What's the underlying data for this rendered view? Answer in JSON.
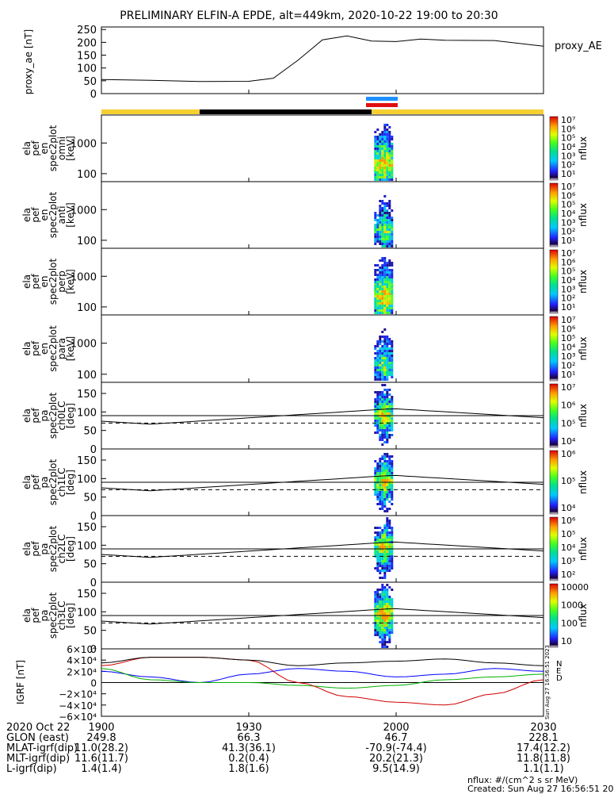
{
  "title": "PRELIMINARY ELFIN-A EPDE, alt=449km, 2020-10-22 19:00 to 20:30",
  "colors": {
    "yellow_bar": "#f5d030",
    "black_bar": "#000000",
    "blue_bar": "#1e90ff",
    "red_bar": "#e01010",
    "grid_line": "#000000"
  },
  "chart_data": [
    {
      "type": "line",
      "panel": "proxy_ae",
      "ylabel": "proxy_ae [nT]",
      "legend": "proxy_AE",
      "ylim": [
        0,
        260
      ],
      "yticks": [
        "250",
        "200",
        "150",
        "100",
        "50",
        "0"
      ],
      "x_minutes": [
        0,
        10,
        20,
        30,
        35,
        40,
        45,
        50,
        55,
        60,
        65,
        70,
        80,
        90
      ],
      "values": [
        55,
        52,
        47,
        48,
        60,
        130,
        210,
        225,
        205,
        203,
        213,
        208,
        207,
        185
      ]
    },
    {
      "type": "heatmap",
      "panel": "omni",
      "ylabel": "ela pef en spec2plot omni [keV]",
      "yscale": "log",
      "yticks": [
        "1000",
        "100"
      ],
      "colorbar_label": "nflux",
      "colorbar_ticks": [
        "10⁷",
        "10⁶",
        "10⁵",
        "10⁴",
        "10³",
        "10²",
        "10¹"
      ]
    },
    {
      "type": "heatmap",
      "panel": "anti",
      "ylabel": "ela pef en spec2plot anti [keV]",
      "yscale": "log",
      "yticks": [
        "1000",
        "100"
      ],
      "colorbar_label": "nflux",
      "colorbar_ticks": [
        "10⁷",
        "10⁶",
        "10⁵",
        "10⁴",
        "10³",
        "10²",
        "10¹"
      ]
    },
    {
      "type": "heatmap",
      "panel": "perp",
      "ylabel": "ela pef en spec2plot perp [keV]",
      "yscale": "log",
      "yticks": [
        "1000",
        "100"
      ],
      "colorbar_label": "nflux",
      "colorbar_ticks": [
        "10⁷",
        "10⁶",
        "10⁵",
        "10⁴",
        "10³",
        "10²",
        "10¹"
      ]
    },
    {
      "type": "heatmap",
      "panel": "para",
      "ylabel": "ela pef en spec2plot para [keV]",
      "yscale": "log",
      "yticks": [
        "1000",
        "100"
      ],
      "colorbar_label": "nflux",
      "colorbar_ticks": [
        "10⁷",
        "10⁶",
        "10⁵",
        "10⁴",
        "10³",
        "10²",
        "10¹"
      ]
    },
    {
      "type": "heatmap",
      "panel": "ch0LC",
      "ylabel": "ela pef pa spec2plot ch0LC [deg]",
      "ylim": [
        0,
        180
      ],
      "yticks": [
        "150",
        "100",
        "50",
        "0"
      ],
      "colorbar_label": "nflux",
      "colorbar_ticks": [
        "10⁷",
        "10⁶",
        "10⁵",
        "10⁴"
      ]
    },
    {
      "type": "heatmap",
      "panel": "ch1LC",
      "ylabel": "ela pef pa spec2plot ch1LC [deg]",
      "ylim": [
        0,
        180
      ],
      "yticks": [
        "150",
        "100",
        "50",
        "0"
      ],
      "colorbar_label": "nflux",
      "colorbar_ticks": [
        "10⁶",
        "10⁵",
        "10⁴"
      ]
    },
    {
      "type": "heatmap",
      "panel": "ch2LC",
      "ylabel": "ela pef pa spec2plot ch2LC [deg]",
      "ylim": [
        0,
        180
      ],
      "yticks": [
        "150",
        "100",
        "50",
        "0"
      ],
      "colorbar_label": "nflux",
      "colorbar_ticks": [
        "10⁶",
        "10⁵",
        "10⁴",
        "10³",
        "10²"
      ]
    },
    {
      "type": "heatmap",
      "panel": "ch3LC",
      "ylabel": "ela pef pa spec2plot ch3LC [deg]",
      "ylim": [
        0,
        180
      ],
      "yticks": [
        "150",
        "100",
        "50",
        "0"
      ],
      "colorbar_label": "nflux",
      "colorbar_ticks": [
        "10000",
        "1000",
        "100",
        "10"
      ]
    },
    {
      "type": "line",
      "panel": "igrf",
      "ylabel": "IGRF [nT]",
      "ylim": [
        -60000,
        60000
      ],
      "yticks": [
        "6×10⁴",
        "4×10⁴",
        "2×10⁴",
        "0",
        "−2×10⁴",
        "−4×10⁴",
        "−6×10⁴"
      ],
      "legend": [
        "N",
        "E",
        "D"
      ],
      "side_label": "Sun Aug 27 16:56:51 2023",
      "x_minutes": [
        0,
        10,
        20,
        30,
        40,
        50,
        60,
        70,
        80,
        90
      ],
      "series": [
        {
          "name": "N",
          "color": "#0000ff",
          "values": [
            20000,
            10000,
            0,
            15000,
            25000,
            20000,
            10000,
            15000,
            25000,
            20000
          ]
        },
        {
          "name": "E",
          "color": "#00b000",
          "values": [
            25000,
            5000,
            0,
            0,
            -5000,
            -10000,
            -5000,
            5000,
            10000,
            15000
          ]
        },
        {
          "name": "D",
          "color": "#d00000",
          "values": [
            30000,
            45000,
            45000,
            40000,
            0,
            -25000,
            -35000,
            -40000,
            -20000,
            5000
          ]
        },
        {
          "name": "",
          "color": "#000000",
          "values": [
            35000,
            45000,
            45000,
            40000,
            30000,
            35000,
            38000,
            42000,
            35000,
            30000
          ]
        }
      ]
    }
  ],
  "xaxis": {
    "ticks": [
      "1900",
      "1930",
      "2000",
      "2030"
    ]
  },
  "footer": {
    "rows": [
      {
        "label": "2020 Oct 22",
        "values": [
          "1900",
          "1930",
          "2000",
          "2030"
        ]
      },
      {
        "label": "GLON (east)",
        "values": [
          "249.8",
          "66.3",
          "46.7",
          "228.1"
        ]
      },
      {
        "label": "MLAT-igrf(dip)",
        "values": [
          "11.0(28.2)",
          "41.3(36.1)",
          "-70.9(-74.4)",
          "17.4(12.2)"
        ]
      },
      {
        "label": "MLT-igrf(dip)",
        "values": [
          "11.6(11.7)",
          "0.2(0.4)",
          "20.2(21.3)",
          "11.8(11.8)"
        ]
      },
      {
        "label": "L-igrf(dip)",
        "values": [
          "1.4(1.4)",
          "1.8(1.6)",
          "9.5(14.9)",
          "1.1(1.1)"
        ]
      }
    ],
    "units": "nflux: #/(cm^2 s sr MeV)",
    "created": "Created: Sun Aug 27 16:56:51 2023"
  }
}
